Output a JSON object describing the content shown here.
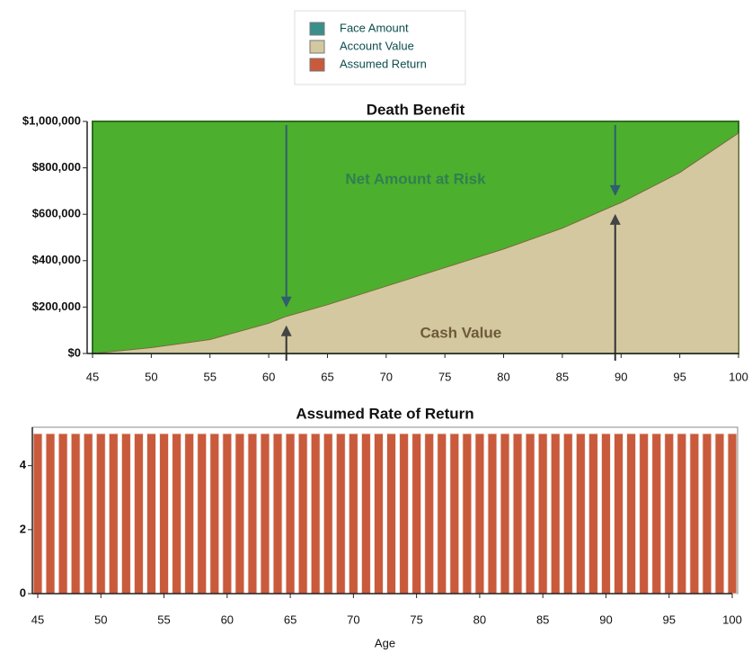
{
  "chart_data": [
    {
      "type": "area",
      "title": "Death Benefit",
      "x": [
        45,
        50,
        55,
        60,
        61.5,
        65,
        70,
        75,
        80,
        85,
        89.5,
        90,
        95,
        100
      ],
      "series": [
        {
          "name": "Face Amount",
          "color": "#3a8f8a",
          "fill": "#4daf2e",
          "values": [
            1000000,
            1000000,
            1000000,
            1000000,
            1000000,
            1000000,
            1000000,
            1000000,
            1000000,
            1000000,
            1000000,
            1000000,
            1000000,
            1000000
          ]
        },
        {
          "name": "Account Value",
          "color": "#d3c8a0",
          "fill": "#d3c8a0",
          "values": [
            0,
            25000,
            60000,
            130000,
            160000,
            210000,
            290000,
            370000,
            450000,
            540000,
            640000,
            650000,
            780000,
            950000
          ]
        }
      ],
      "annotations": [
        "Net Amount at Risk",
        "Cash Value"
      ],
      "arrows_x": [
        61.5,
        89.5
      ],
      "xlim": [
        45,
        100
      ],
      "xticks": [
        45,
        50,
        55,
        60,
        65,
        70,
        75,
        80,
        85,
        90,
        95,
        100
      ],
      "ylim": [
        0,
        1000000
      ],
      "yticks": [
        {
          "value": 0,
          "label": "$0"
        },
        {
          "value": 200000,
          "label": "$200,000"
        },
        {
          "value": 400000,
          "label": "$400,000"
        },
        {
          "value": 600000,
          "label": "$600,000"
        },
        {
          "value": 800000,
          "label": "$800,000"
        },
        {
          "value": 1000000,
          "label": "$1,000,000"
        }
      ]
    },
    {
      "type": "bar",
      "title": "Assumed Rate of Return",
      "x_label": "Age",
      "x": [
        45,
        46,
        47,
        48,
        49,
        50,
        51,
        52,
        53,
        54,
        55,
        56,
        57,
        58,
        59,
        60,
        61,
        62,
        63,
        64,
        65,
        66,
        67,
        68,
        69,
        70,
        71,
        72,
        73,
        74,
        75,
        76,
        77,
        78,
        79,
        80,
        81,
        82,
        83,
        84,
        85,
        86,
        87,
        88,
        89,
        90,
        91,
        92,
        93,
        94,
        95,
        96,
        97,
        98,
        99,
        100
      ],
      "series": [
        {
          "name": "Assumed Return",
          "color": "#c95a3b",
          "values": [
            5,
            5,
            5,
            5,
            5,
            5,
            5,
            5,
            5,
            5,
            5,
            5,
            5,
            5,
            5,
            5,
            5,
            5,
            5,
            5,
            5,
            5,
            5,
            5,
            5,
            5,
            5,
            5,
            5,
            5,
            5,
            5,
            5,
            5,
            5,
            5,
            5,
            5,
            5,
            5,
            5,
            5,
            5,
            5,
            5,
            5,
            5,
            5,
            5,
            5,
            5,
            5,
            5,
            5,
            5,
            5
          ]
        }
      ],
      "xlim": [
        45,
        100
      ],
      "xticks": [
        45,
        50,
        55,
        60,
        65,
        70,
        75,
        80,
        85,
        90,
        95,
        100
      ],
      "ylim": [
        0,
        5.2
      ],
      "yticks": [
        0,
        2,
        4
      ]
    }
  ]
}
